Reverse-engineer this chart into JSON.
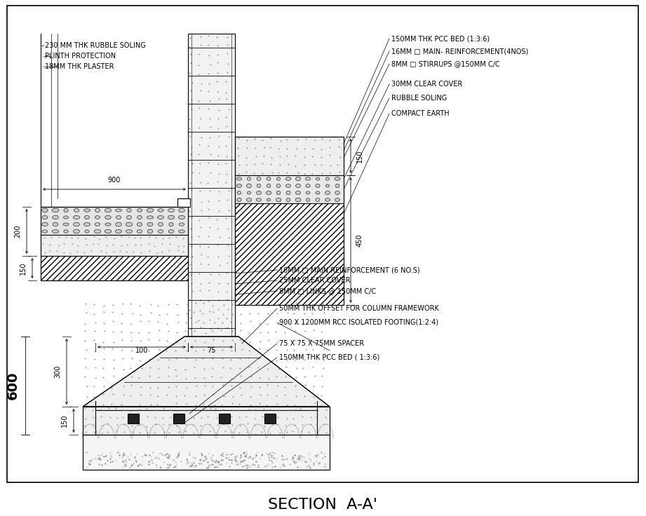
{
  "title": "SECTION  A-A’",
  "title_fontsize": 16,
  "fs": 7.0,
  "bg": "#ffffff",
  "lc": "#000000",
  "ann_left": [
    "230 MM THK RUBBLE SOLING",
    "PLINTH PROTECTION",
    "18MM THK PLASTER"
  ],
  "ann_right": [
    "150MM THK PCC BED (1:3:6)",
    "16MM □ MAIN- REINFORCEMENT(4NOS)",
    "8MM □ STIRRUPS @150MM C/C",
    "30MM CLEAR COVER",
    "RUBBLE SOLING",
    "COMPACT EARTH"
  ],
  "ann_mid": [
    "16MM □ MAIN REINFORCEMENT (6 NO.S)",
    "25MM CLEAR COVER",
    "8MM □ LINKS @ 150MM C/C",
    "50MM THK OFFSET FOR COLUMN FRAMEWORK",
    "900 X 1200MM RCC ISOLATED FOOTING(1:2:4)",
    "75 X 75 X 75MM SPACER",
    "150MM THK PCC BED ( 1:3:6)"
  ]
}
